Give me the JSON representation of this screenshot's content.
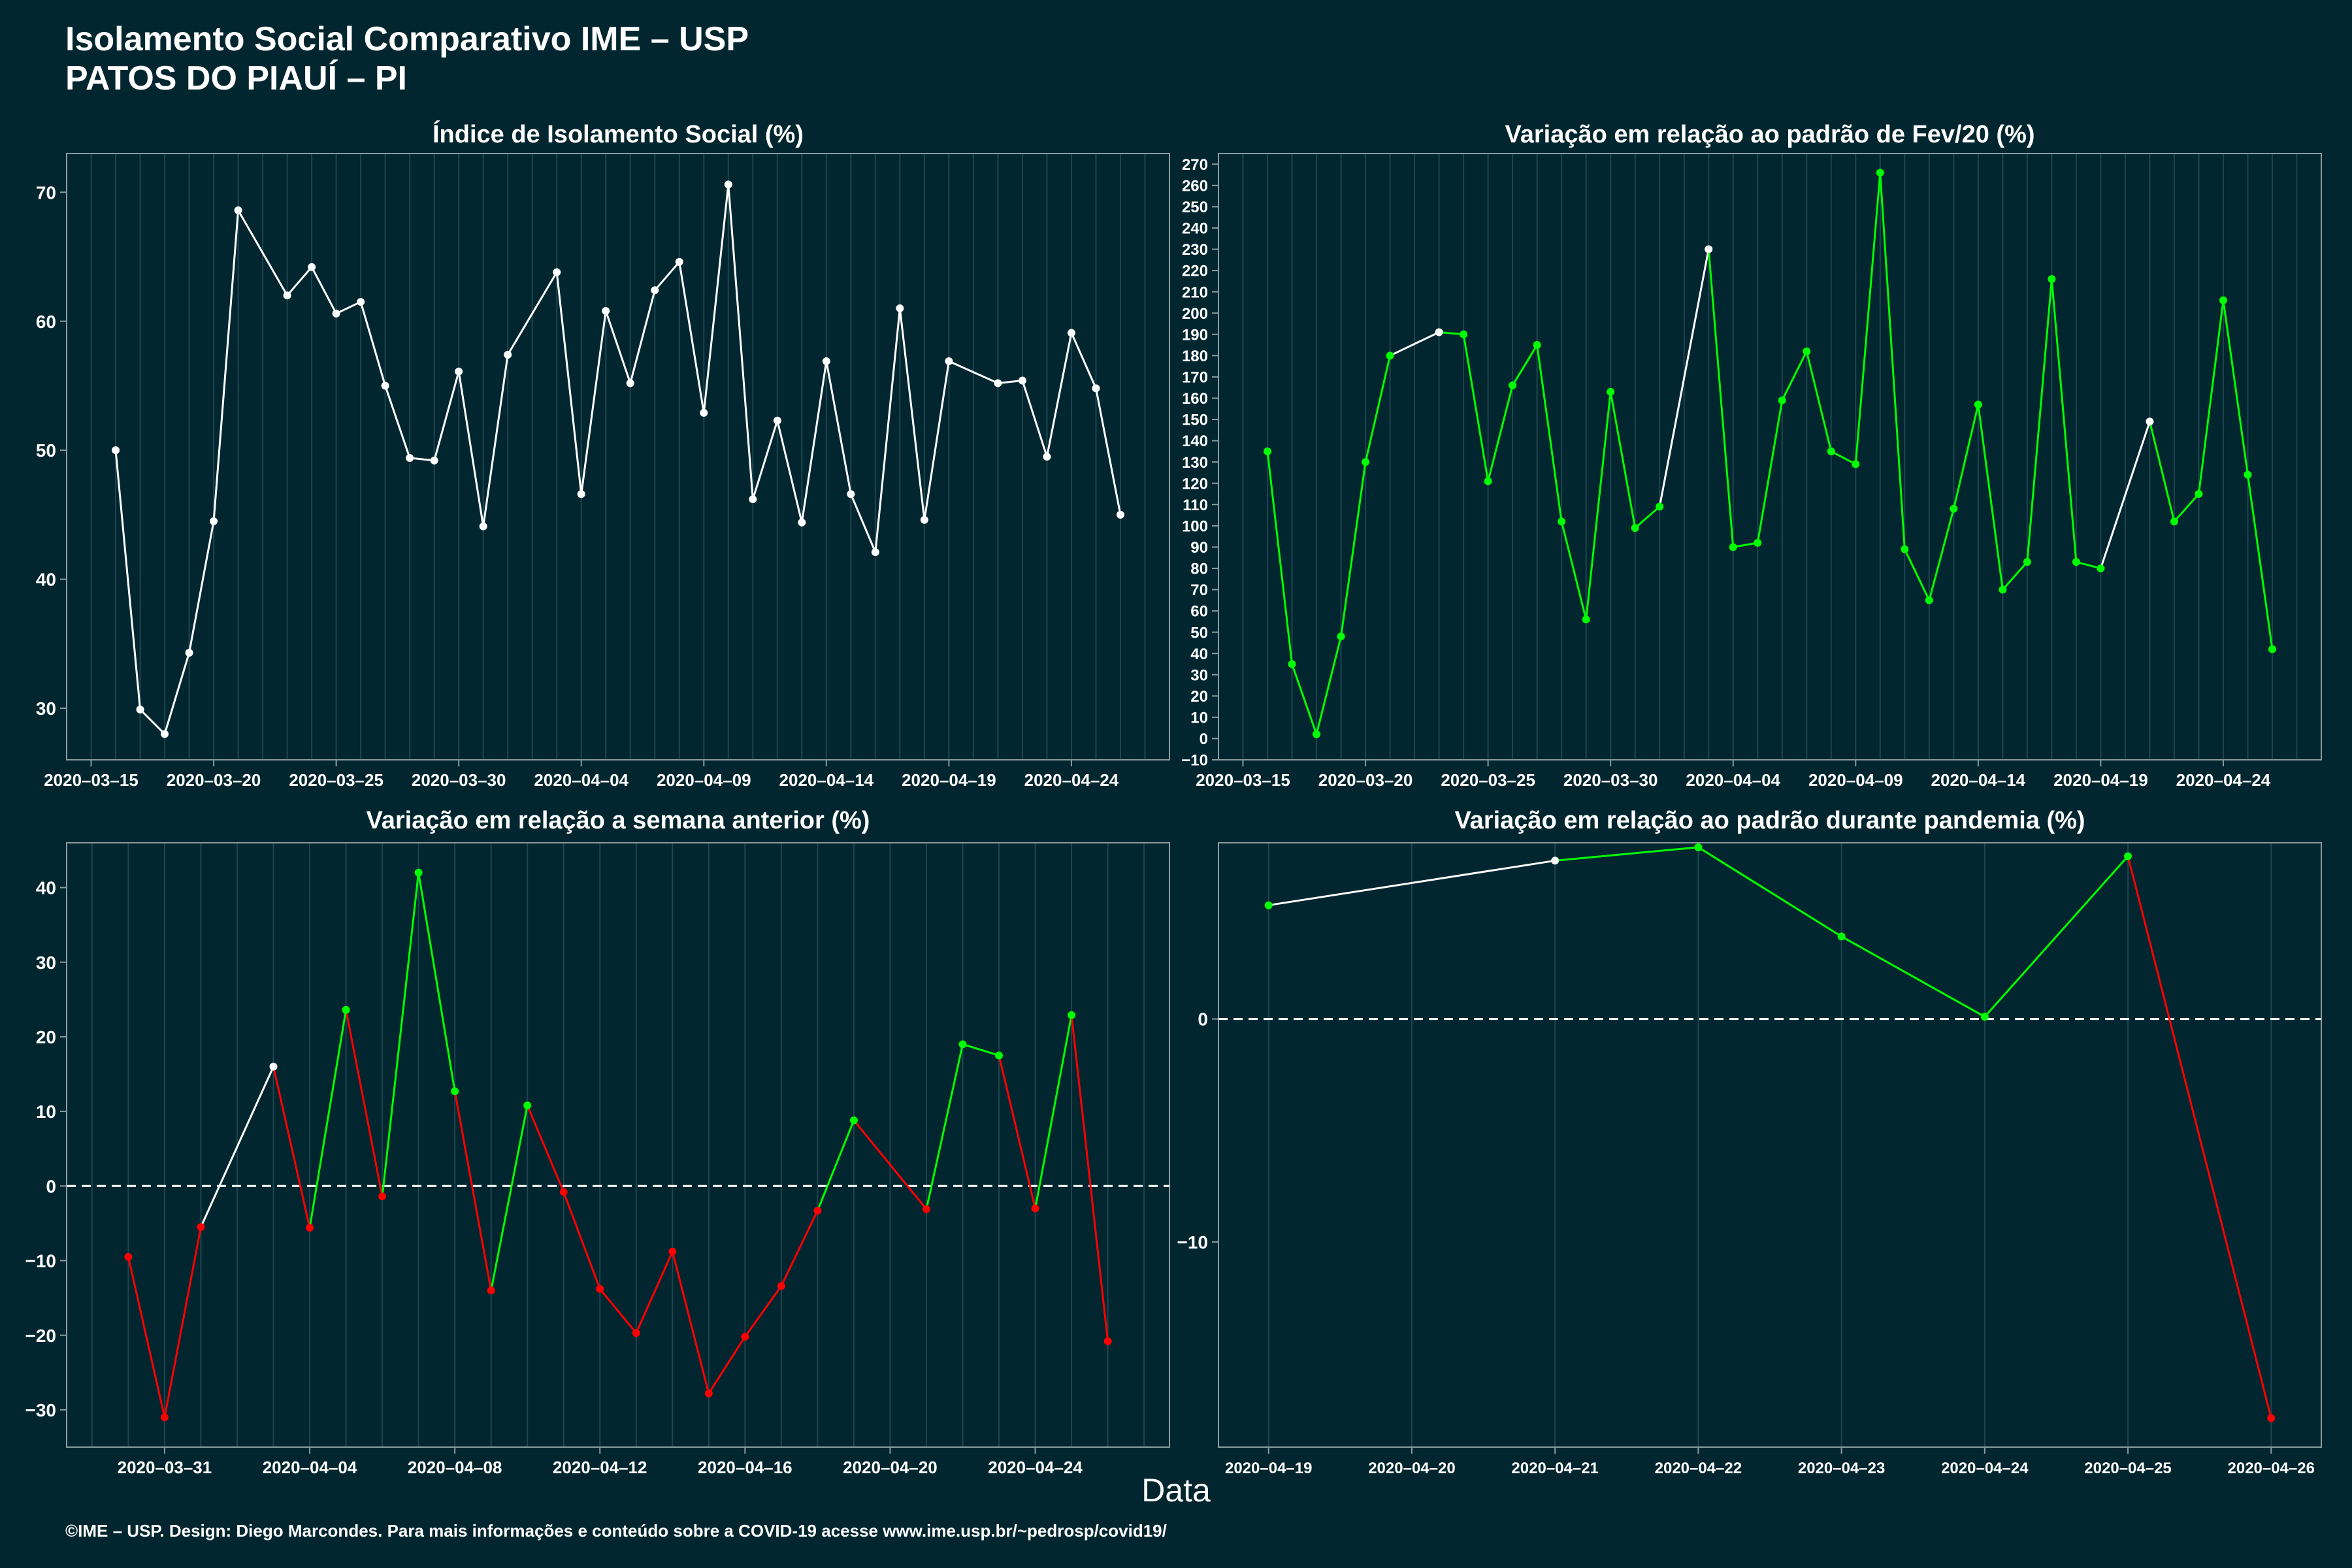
{
  "header": {
    "title_line1": "Isolamento Social Comparativo IME – USP",
    "title_line2": "PATOS DO PIAUÍ – PI"
  },
  "x_axis_title": "Data",
  "caption": "©IME – USP. Design: Diego Marcondes. Para mais informações e conteúdo sobre a COVID-19 acesse www.ime.usp.br/~pedrosp/covid19/",
  "colors": {
    "background": "#02262f",
    "white": "#ffffff",
    "green": "#00ff00",
    "red": "#ff0000",
    "grid": "#1e4550"
  },
  "chart_data": [
    {
      "type": "line",
      "title": "Índice de Isolamento Social (%)",
      "x_is_date": true,
      "x_ticks": [
        "2020-03-15",
        "2020-03-20",
        "2020-03-25",
        "2020-03-30",
        "2020-04-04",
        "2020-04-09",
        "2020-04-14",
        "2020-04-19",
        "2020-04-24"
      ],
      "y_ticks": [
        30,
        40,
        50,
        60,
        70
      ],
      "xlim": [
        "2020-03-14",
        "2020-04-28"
      ],
      "ylim": [
        26,
        73
      ],
      "zero_line": false,
      "points": [
        [
          "2020-03-16",
          50.0,
          "white"
        ],
        [
          "2020-03-17",
          29.9,
          "white"
        ],
        [
          "2020-03-18",
          28.0,
          "white"
        ],
        [
          "2020-03-19",
          34.3,
          "white"
        ],
        [
          "2020-03-20",
          44.5,
          "white"
        ],
        [
          "2020-03-21",
          68.6,
          "white"
        ],
        [
          "2020-03-23",
          62.0,
          "white"
        ],
        [
          "2020-03-24",
          64.2,
          "white"
        ],
        [
          "2020-03-25",
          60.6,
          "white"
        ],
        [
          "2020-03-26",
          61.5,
          "white"
        ],
        [
          "2020-03-27",
          55.0,
          "white"
        ],
        [
          "2020-03-28",
          49.4,
          "white"
        ],
        [
          "2020-03-29",
          49.2,
          "white"
        ],
        [
          "2020-03-30",
          56.1,
          "white"
        ],
        [
          "2020-03-31",
          44.1,
          "white"
        ],
        [
          "2020-04-01",
          57.4,
          "white"
        ],
        [
          "2020-04-03",
          63.8,
          "white"
        ],
        [
          "2020-04-04",
          46.6,
          "white"
        ],
        [
          "2020-04-05",
          60.8,
          "white"
        ],
        [
          "2020-04-06",
          55.2,
          "white"
        ],
        [
          "2020-04-07",
          62.4,
          "white"
        ],
        [
          "2020-04-08",
          64.6,
          "white"
        ],
        [
          "2020-04-09",
          52.9,
          "white"
        ],
        [
          "2020-04-10",
          70.6,
          "white"
        ],
        [
          "2020-04-11",
          46.2,
          "white"
        ],
        [
          "2020-04-12",
          52.3,
          "white"
        ],
        [
          "2020-04-13",
          44.4,
          "white"
        ],
        [
          "2020-04-14",
          56.9,
          "white"
        ],
        [
          "2020-04-15",
          46.6,
          "white"
        ],
        [
          "2020-04-16",
          42.1,
          "white"
        ],
        [
          "2020-04-17",
          61.0,
          "white"
        ],
        [
          "2020-04-18",
          44.6,
          "white"
        ],
        [
          "2020-04-19",
          56.9,
          "white"
        ],
        [
          "2020-04-21",
          55.2,
          "white"
        ],
        [
          "2020-04-22",
          55.4,
          "white"
        ],
        [
          "2020-04-23",
          49.5,
          "white"
        ],
        [
          "2020-04-24",
          59.1,
          "white"
        ],
        [
          "2020-04-25",
          54.8,
          "white"
        ],
        [
          "2020-04-26",
          45.0,
          "white"
        ]
      ]
    },
    {
      "type": "line",
      "title": "Variação em relação ao padrão de Fev/20 (%)",
      "x_is_date": true,
      "x_ticks": [
        "2020-03-15",
        "2020-03-20",
        "2020-03-25",
        "2020-03-30",
        "2020-04-04",
        "2020-04-09",
        "2020-04-14",
        "2020-04-19",
        "2020-04-24"
      ],
      "y_ticks": [
        -10,
        0,
        10,
        20,
        30,
        40,
        50,
        60,
        70,
        80,
        90,
        100,
        110,
        120,
        130,
        140,
        150,
        160,
        170,
        180,
        190,
        200,
        210,
        220,
        230,
        240,
        250,
        260,
        270
      ],
      "xlim": [
        "2020-03-14",
        "2020-04-28"
      ],
      "ylim": [
        -10,
        275
      ],
      "zero_line": false,
      "points": [
        [
          "2020-03-16",
          135,
          "green"
        ],
        [
          "2020-03-17",
          35,
          "green"
        ],
        [
          "2020-03-18",
          2,
          "green"
        ],
        [
          "2020-03-19",
          48,
          "green"
        ],
        [
          "2020-03-20",
          130,
          "green"
        ],
        [
          "2020-03-21",
          180,
          "green"
        ],
        [
          "2020-03-23",
          191,
          "white"
        ],
        [
          "2020-03-24",
          190,
          "green"
        ],
        [
          "2020-03-25",
          121,
          "green"
        ],
        [
          "2020-03-26",
          166,
          "green"
        ],
        [
          "2020-03-27",
          185,
          "green"
        ],
        [
          "2020-03-28",
          102,
          "green"
        ],
        [
          "2020-03-29",
          56,
          "green"
        ],
        [
          "2020-03-30",
          163,
          "green"
        ],
        [
          "2020-03-31",
          99,
          "green"
        ],
        [
          "2020-04-01",
          109,
          "green"
        ],
        [
          "2020-04-03",
          230,
          "white"
        ],
        [
          "2020-04-04",
          90,
          "green"
        ],
        [
          "2020-04-05",
          92,
          "green"
        ],
        [
          "2020-04-06",
          159,
          "green"
        ],
        [
          "2020-04-07",
          182,
          "green"
        ],
        [
          "2020-04-08",
          135,
          "green"
        ],
        [
          "2020-04-09",
          129,
          "green"
        ],
        [
          "2020-04-10",
          266,
          "green"
        ],
        [
          "2020-04-11",
          89,
          "green"
        ],
        [
          "2020-04-12",
          65,
          "green"
        ],
        [
          "2020-04-13",
          108,
          "green"
        ],
        [
          "2020-04-14",
          157,
          "green"
        ],
        [
          "2020-04-15",
          70,
          "green"
        ],
        [
          "2020-04-16",
          83,
          "green"
        ],
        [
          "2020-04-17",
          216,
          "green"
        ],
        [
          "2020-04-18",
          83,
          "green"
        ],
        [
          "2020-04-19",
          80,
          "green"
        ],
        [
          "2020-04-21",
          149,
          "white"
        ],
        [
          "2020-04-22",
          102,
          "green"
        ],
        [
          "2020-04-23",
          115,
          "green"
        ],
        [
          "2020-04-24",
          206,
          "green"
        ],
        [
          "2020-04-25",
          124,
          "green"
        ],
        [
          "2020-04-26",
          42,
          "green"
        ]
      ]
    },
    {
      "type": "line",
      "title": "Variação em relação a semana anterior (%)",
      "x_is_date": true,
      "x_ticks": [
        "2020-03-31",
        "2020-04-04",
        "2020-04-08",
        "2020-04-12",
        "2020-04-16",
        "2020-04-20",
        "2020-04-24"
      ],
      "y_ticks": [
        -30,
        -20,
        -10,
        0,
        10,
        20,
        30,
        40
      ],
      "xlim": [
        "2020-03-28.3",
        "2020-04-27.7"
      ],
      "ylim": [
        -35,
        46
      ],
      "zero_line": true,
      "points": [
        [
          "2020-03-30",
          -9.5,
          "red"
        ],
        [
          "2020-03-31",
          -31.0,
          "red"
        ],
        [
          "2020-04-01",
          -5.5,
          "red"
        ],
        [
          "2020-04-03",
          16.0,
          "white"
        ],
        [
          "2020-04-04",
          -5.6,
          "red"
        ],
        [
          "2020-04-05",
          23.6,
          "green"
        ],
        [
          "2020-04-06",
          -1.4,
          "red"
        ],
        [
          "2020-04-07",
          42.0,
          "green"
        ],
        [
          "2020-04-08",
          12.7,
          "green"
        ],
        [
          "2020-04-09",
          -14.0,
          "red"
        ],
        [
          "2020-04-10",
          10.8,
          "green"
        ],
        [
          "2020-04-11",
          -0.8,
          "red"
        ],
        [
          "2020-04-12",
          -13.8,
          "red"
        ],
        [
          "2020-04-13",
          -19.7,
          "red"
        ],
        [
          "2020-04-14",
          -8.8,
          "red"
        ],
        [
          "2020-04-15",
          -27.8,
          "red"
        ],
        [
          "2020-04-16",
          -20.2,
          "red"
        ],
        [
          "2020-04-17",
          -13.4,
          "red"
        ],
        [
          "2020-04-18",
          -3.3,
          "red"
        ],
        [
          "2020-04-19",
          8.8,
          "green"
        ],
        [
          "2020-04-21",
          -3.1,
          "red"
        ],
        [
          "2020-04-22",
          19.0,
          "green"
        ],
        [
          "2020-04-23",
          17.5,
          "green"
        ],
        [
          "2020-04-24",
          -3.0,
          "red"
        ],
        [
          "2020-04-25",
          22.9,
          "green"
        ],
        [
          "2020-04-26",
          -20.8,
          "red"
        ]
      ]
    },
    {
      "type": "line",
      "title": "Variação em relação ao padrão durante pandemia (%)",
      "x_is_date": true,
      "x_ticks": [
        "2020-04-19",
        "2020-04-20",
        "2020-04-21",
        "2020-04-22",
        "2020-04-23",
        "2020-04-24",
        "2020-04-25",
        "2020-04-26"
      ],
      "y_ticks": [
        -10,
        0
      ],
      "xlim": [
        "2020-04-18.65",
        "2020-04-26.35"
      ],
      "ylim": [
        -19.2,
        7.9
      ],
      "zero_line": true,
      "points": [
        [
          "2020-04-19",
          5.1,
          "green"
        ],
        [
          "2020-04-21",
          7.1,
          "white"
        ],
        [
          "2020-04-22",
          7.7,
          "green"
        ],
        [
          "2020-04-23",
          3.7,
          "green"
        ],
        [
          "2020-04-24",
          0.1,
          "green"
        ],
        [
          "2020-04-25",
          7.3,
          "green"
        ],
        [
          "2020-04-26",
          -17.9,
          "red"
        ]
      ]
    }
  ]
}
